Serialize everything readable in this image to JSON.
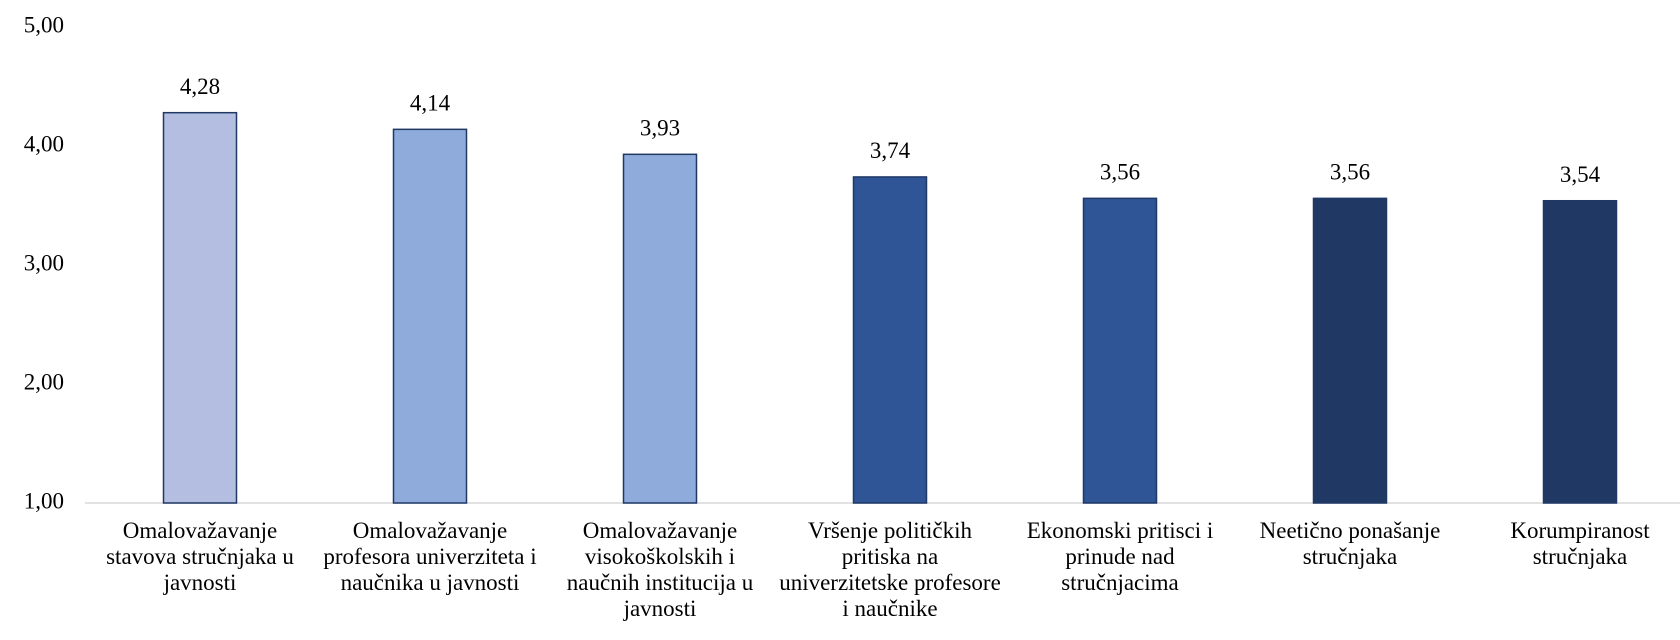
{
  "chart_data": {
    "type": "bar",
    "categories": [
      "Omalovažavanje stavova stručnjaka u javnosti",
      "Omalovažavanje profesora univerziteta i naučnika u javnosti",
      "Omalovažavanje visokoškolskih i naučnih institucija u javnosti",
      "Vršenje političkih pritiska na univerzitetske profesore i naučnike",
      "Ekonomski pritisci i prinude nad stručnjacima",
      "Neetično ponašanje stručnjaka",
      "Korumpiranost stručnjaka"
    ],
    "values": [
      4.28,
      4.14,
      3.93,
      3.74,
      3.56,
      3.56,
      3.54
    ],
    "value_labels": [
      "4,28",
      "4,14",
      "3,93",
      "3,74",
      "3,56",
      "3,56",
      "3,54"
    ],
    "colors": [
      "#b4bee0",
      "#8eabdc",
      "#8eabdc",
      "#2f5597",
      "#2f5597",
      "#203864",
      "#203864"
    ],
    "ylim": [
      1,
      5
    ],
    "yticks": [
      {
        "value": 1,
        "label": "1,00"
      },
      {
        "value": 2,
        "label": "2,00"
      },
      {
        "value": 3,
        "label": "3,00"
      },
      {
        "value": 4,
        "label": "4,00"
      },
      {
        "value": 5,
        "label": "5,00"
      }
    ],
    "grid": false
  }
}
